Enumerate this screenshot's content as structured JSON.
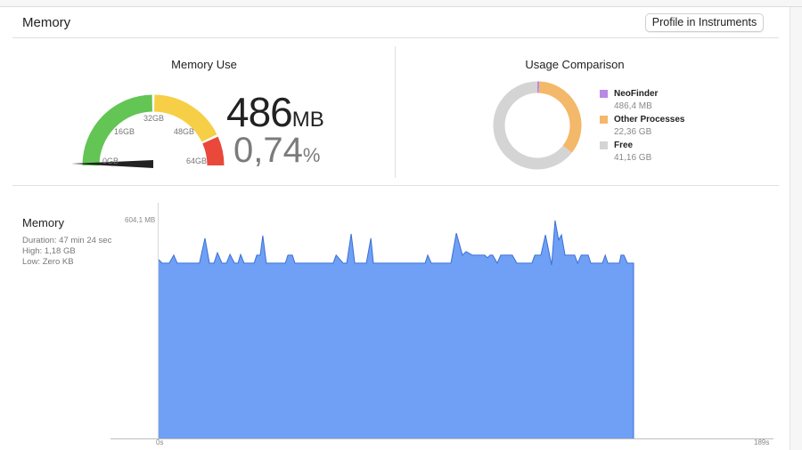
{
  "header": {
    "title": "Memory",
    "profile_button": "Profile in Instruments"
  },
  "memory_use": {
    "title": "Memory Use",
    "value": "486",
    "value_unit": "MB",
    "percent": "0,74",
    "percent_unit": "%",
    "gauge": {
      "labels": [
        "0GB",
        "16GB",
        "32GB",
        "48GB",
        "64GB"
      ],
      "level_fraction": 0.0074,
      "colors": {
        "green": "#62c554",
        "yellow": "#f6cf47",
        "red": "#e9483b",
        "needle": "#222222"
      }
    }
  },
  "usage_comparison": {
    "title": "Usage Comparison",
    "items": [
      {
        "name": "NeoFinder",
        "value": "486,4 MB",
        "gb": 0.475,
        "color": "#b98ae6"
      },
      {
        "name": "Other Processes",
        "value": "22,36 GB",
        "gb": 22.36,
        "color": "#f4b86a"
      },
      {
        "name": "Free",
        "value": "41,16 GB",
        "gb": 41.16,
        "color": "#d4d4d4"
      }
    ]
  },
  "timeline": {
    "title": "Memory",
    "duration": "Duration: 47 min 24 sec",
    "high": "High: 1,18 GB",
    "low": "Low: Zero KB"
  },
  "chart_data": {
    "type": "area",
    "y_top_label": "604,1 MB",
    "x_start_label": "0s",
    "x_end_label": "189s",
    "xlim": [
      0,
      189
    ],
    "ylim": [
      0,
      604.1
    ],
    "color": "#6fa0f6",
    "line_color": "#3b6fd6",
    "points": [
      [
        0,
        494
      ],
      [
        1.1,
        484
      ],
      [
        3.3,
        484
      ],
      [
        4.7,
        506
      ],
      [
        5.8,
        484
      ],
      [
        12.7,
        484
      ],
      [
        14.4,
        553
      ],
      [
        15.8,
        484
      ],
      [
        17.2,
        484
      ],
      [
        18.3,
        513
      ],
      [
        19.7,
        484
      ],
      [
        21.1,
        484
      ],
      [
        22.2,
        508
      ],
      [
        23.6,
        484
      ],
      [
        24.7,
        484
      ],
      [
        25.5,
        508
      ],
      [
        26.6,
        484
      ],
      [
        29.7,
        484
      ],
      [
        30.5,
        506
      ],
      [
        31.6,
        506
      ],
      [
        32.4,
        560
      ],
      [
        33.5,
        484
      ],
      [
        39.4,
        484
      ],
      [
        40.2,
        506
      ],
      [
        41.6,
        506
      ],
      [
        42.4,
        484
      ],
      [
        54.3,
        484
      ],
      [
        55.2,
        506
      ],
      [
        57.4,
        484
      ],
      [
        58.5,
        484
      ],
      [
        59.9,
        565
      ],
      [
        61.0,
        484
      ],
      [
        64.6,
        484
      ],
      [
        66.0,
        553
      ],
      [
        66.8,
        484
      ],
      [
        82.9,
        484
      ],
      [
        83.7,
        506
      ],
      [
        84.8,
        484
      ],
      [
        90.9,
        484
      ],
      [
        92.6,
        567
      ],
      [
        94.5,
        506
      ],
      [
        95.6,
        516
      ],
      [
        97.6,
        506
      ],
      [
        101.4,
        506
      ],
      [
        102.3,
        499
      ],
      [
        103.1,
        506
      ],
      [
        103.9,
        506
      ],
      [
        105.3,
        484
      ],
      [
        106.4,
        506
      ],
      [
        110.0,
        506
      ],
      [
        111.4,
        484
      ],
      [
        116.1,
        484
      ],
      [
        117.0,
        506
      ],
      [
        118.9,
        506
      ],
      [
        120.3,
        562
      ],
      [
        122.2,
        479
      ],
      [
        123.3,
        602
      ],
      [
        124.4,
        548
      ],
      [
        125.3,
        562
      ],
      [
        126.4,
        506
      ],
      [
        129.4,
        506
      ],
      [
        130.3,
        484
      ],
      [
        131.4,
        506
      ],
      [
        133.6,
        506
      ],
      [
        134.4,
        484
      ],
      [
        138.0,
        484
      ],
      [
        138.9,
        506
      ],
      [
        139.7,
        484
      ],
      [
        143.3,
        484
      ],
      [
        143.8,
        506
      ],
      [
        144.7,
        506
      ],
      [
        145.8,
        484
      ],
      [
        147.7,
        484
      ]
    ]
  }
}
